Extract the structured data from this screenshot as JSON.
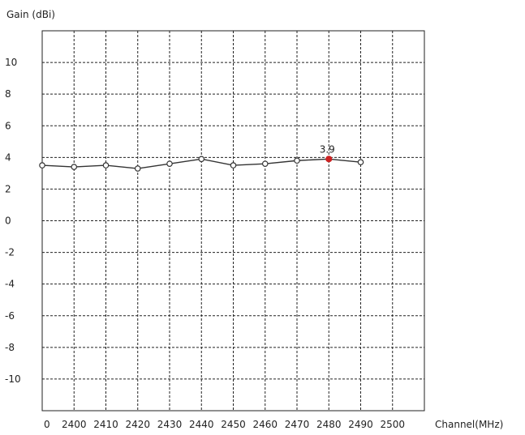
{
  "chart_data": {
    "type": "line",
    "ylabel": "Gain (dBi)",
    "xlabel": "Channel(MHz)",
    "x_origin_label": "0",
    "x_ticks": [
      2400,
      2410,
      2420,
      2430,
      2440,
      2450,
      2460,
      2470,
      2480,
      2490,
      2500
    ],
    "y_ticks": [
      10,
      8,
      6,
      4,
      2,
      0,
      -2,
      -4,
      -6,
      -8,
      -10
    ],
    "ylim": [
      -12,
      12
    ],
    "grid": true,
    "grid_style": "dashed",
    "series": [
      {
        "color": "#333333",
        "points": [
          {
            "x": 2390,
            "y": 3.5
          },
          {
            "x": 2400,
            "y": 3.4
          },
          {
            "x": 2410,
            "y": 3.5
          },
          {
            "x": 2420,
            "y": 3.3
          },
          {
            "x": 2430,
            "y": 3.6
          },
          {
            "x": 2440,
            "y": 3.9
          },
          {
            "x": 2450,
            "y": 3.5
          },
          {
            "x": 2460,
            "y": 3.6
          },
          {
            "x": 2470,
            "y": 3.8
          },
          {
            "x": 2480,
            "y": 3.9
          },
          {
            "x": 2490,
            "y": 3.7
          }
        ]
      }
    ],
    "highlight": {
      "x": 2480,
      "y": 3.9,
      "label": "3.9",
      "color": "#cc2222"
    }
  }
}
